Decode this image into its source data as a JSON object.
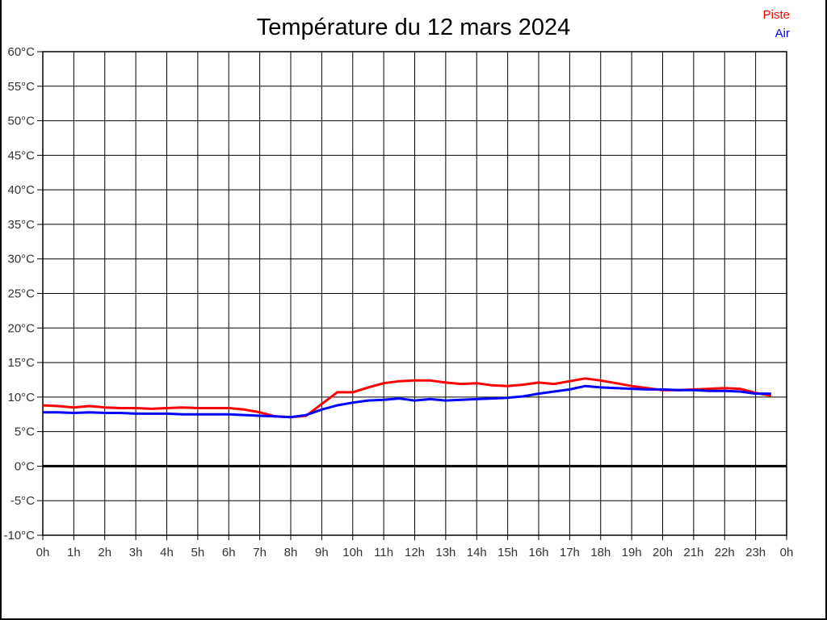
{
  "title": "Température du 12 mars 2024",
  "legend": [
    {
      "label": "Piste",
      "color": "#ff0000"
    },
    {
      "label": "Air",
      "color": "#0000ff"
    }
  ],
  "colors": {
    "grid": "#000000",
    "zero_line": "#000000",
    "axis_text": "#333333",
    "background": "#ffffff",
    "frame": "#000000"
  },
  "chart_data": {
    "type": "line",
    "title": "Température du 12 mars 2024",
    "xlabel": "",
    "ylabel": "",
    "xlim": [
      0,
      24
    ],
    "ylim": [
      -10,
      60
    ],
    "y_step": 5,
    "x_step": 1,
    "grid": true,
    "zero_line_emphasis": true,
    "legend_position": "top-right",
    "x_tick_labels": [
      "0h",
      "1h",
      "2h",
      "3h",
      "4h",
      "5h",
      "6h",
      "7h",
      "8h",
      "9h",
      "10h",
      "11h",
      "12h",
      "13h",
      "14h",
      "15h",
      "16h",
      "17h",
      "18h",
      "19h",
      "20h",
      "21h",
      "22h",
      "23h",
      "0h"
    ],
    "y_tick_labels": [
      "60°C",
      "55°C",
      "50°C",
      "45°C",
      "40°C",
      "35°C",
      "30°C",
      "25°C",
      "20°C",
      "15°C",
      "10°C",
      "5°C",
      "0°C",
      "-5°C",
      "-10°C"
    ],
    "x": [
      0,
      0.5,
      1,
      1.5,
      2,
      2.5,
      3,
      3.5,
      4,
      4.5,
      5,
      5.5,
      6,
      6.5,
      7,
      7.5,
      8,
      8.5,
      9,
      9.5,
      10,
      10.5,
      11,
      11.5,
      12,
      12.5,
      13,
      13.5,
      14,
      14.5,
      15,
      15.5,
      16,
      16.5,
      17,
      17.5,
      18,
      18.5,
      19,
      19.5,
      20,
      20.5,
      21,
      21.5,
      22,
      22.5,
      23,
      23.5
    ],
    "series": [
      {
        "name": "Piste",
        "color": "#ff0000",
        "values": [
          8.8,
          8.7,
          8.5,
          8.7,
          8.5,
          8.4,
          8.4,
          8.3,
          8.4,
          8.5,
          8.4,
          8.4,
          8.4,
          8.2,
          7.8,
          7.2,
          7.1,
          7.3,
          9.0,
          10.7,
          10.7,
          11.4,
          12.0,
          12.3,
          12.4,
          12.4,
          12.1,
          11.9,
          12.0,
          11.7,
          11.6,
          11.8,
          12.1,
          11.9,
          12.3,
          12.7,
          12.4,
          12.0,
          11.6,
          11.3,
          11.0,
          11.0,
          11.1,
          11.2,
          11.3,
          11.2,
          10.6,
          10.2
        ]
      },
      {
        "name": "Air",
        "color": "#0000ff",
        "values": [
          7.8,
          7.8,
          7.7,
          7.8,
          7.7,
          7.7,
          7.6,
          7.6,
          7.6,
          7.5,
          7.5,
          7.5,
          7.5,
          7.4,
          7.3,
          7.2,
          7.1,
          7.4,
          8.2,
          8.8,
          9.2,
          9.5,
          9.6,
          9.8,
          9.5,
          9.7,
          9.5,
          9.6,
          9.7,
          9.8,
          9.9,
          10.1,
          10.5,
          10.8,
          11.1,
          11.6,
          11.4,
          11.3,
          11.2,
          11.1,
          11.1,
          11.0,
          11.0,
          10.9,
          10.9,
          10.8,
          10.5,
          10.5
        ]
      }
    ]
  }
}
